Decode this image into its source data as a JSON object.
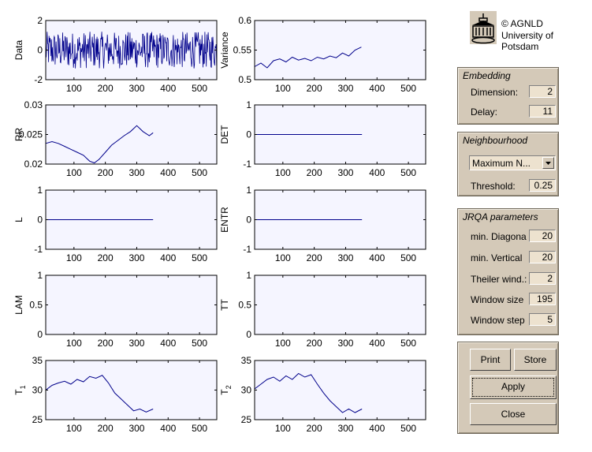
{
  "logo": {
    "icon": "university-building-icon",
    "lines": [
      "© AGNLD",
      "University of",
      "Potsdam"
    ]
  },
  "embedding": {
    "title": "Embedding",
    "dimension_label": "Dimension:",
    "dimension_value": "2",
    "delay_label": "Delay:",
    "delay_value": "11"
  },
  "neighbourhood": {
    "title": "Neighbourhood",
    "method_selected": "Maximum N...",
    "threshold_label": "Threshold:",
    "threshold_value": "0.25"
  },
  "jrqa": {
    "title": "JRQA parameters",
    "min_diagonal_label": "min. Diagona",
    "min_diagonal_value": "20",
    "min_vertical_label": "min. Vertical",
    "min_vertical_value": "20",
    "theiler_label": "Theiler wind.:",
    "theiler_value": "2",
    "window_size_label": "Window size",
    "window_size_value": "195",
    "window_step_label": "Window step",
    "window_step_value": "5"
  },
  "buttons": {
    "print": "Print",
    "store": "Store",
    "apply": "Apply",
    "close": "Close"
  },
  "colors": {
    "panel": "#d4c9b8",
    "plot_bg": "#f5f5ff",
    "trace": "#00008b"
  },
  "chart_data": [
    {
      "type": "line",
      "name": "data",
      "ylabel": "Data",
      "xlim": [
        10,
        555
      ],
      "ylim": [
        -2,
        2
      ],
      "xticks": [
        100,
        200,
        300,
        400,
        500
      ],
      "yticks": [
        -2,
        0,
        2
      ],
      "noise": true,
      "x_end": 555
    },
    {
      "type": "line",
      "name": "variance",
      "ylabel": "Variance",
      "xlim": [
        10,
        555
      ],
      "ylim": [
        0.5,
        0.6
      ],
      "xticks": [
        100,
        200,
        300,
        400,
        500
      ],
      "yticks": [
        0.5,
        0.55,
        0.6
      ],
      "x": [
        10,
        30,
        50,
        70,
        90,
        110,
        130,
        150,
        170,
        190,
        210,
        230,
        250,
        270,
        290,
        310,
        330,
        350
      ],
      "y": [
        0.522,
        0.528,
        0.52,
        0.532,
        0.535,
        0.53,
        0.538,
        0.533,
        0.536,
        0.532,
        0.538,
        0.535,
        0.54,
        0.537,
        0.545,
        0.54,
        0.55,
        0.555
      ]
    },
    {
      "type": "line",
      "name": "rr",
      "ylabel": "RR",
      "xlim": [
        10,
        555
      ],
      "ylim": [
        0.02,
        0.03
      ],
      "xticks": [
        100,
        200,
        300,
        400,
        500
      ],
      "yticks": [
        0.02,
        0.025,
        0.03
      ],
      "x": [
        10,
        30,
        50,
        70,
        90,
        110,
        130,
        150,
        165,
        180,
        200,
        220,
        240,
        260,
        280,
        300,
        320,
        340,
        352
      ],
      "y": [
        0.0235,
        0.0238,
        0.0235,
        0.023,
        0.0225,
        0.022,
        0.0215,
        0.0205,
        0.0202,
        0.0208,
        0.022,
        0.0232,
        0.024,
        0.0248,
        0.0255,
        0.0265,
        0.0255,
        0.0248,
        0.0253
      ]
    },
    {
      "type": "line",
      "name": "det",
      "ylabel": "DET",
      "xlim": [
        10,
        555
      ],
      "ylim": [
        -1,
        1
      ],
      "xticks": [
        100,
        200,
        300,
        400,
        500
      ],
      "yticks": [
        -1,
        0,
        1
      ],
      "x": [
        10,
        352
      ],
      "y": [
        0,
        0
      ]
    },
    {
      "type": "line",
      "name": "l",
      "ylabel": "L",
      "xlim": [
        10,
        555
      ],
      "ylim": [
        -1,
        1
      ],
      "xticks": [
        100,
        200,
        300,
        400,
        500
      ],
      "yticks": [
        -1,
        0,
        1
      ],
      "x": [
        10,
        352
      ],
      "y": [
        0,
        0
      ]
    },
    {
      "type": "line",
      "name": "entr",
      "ylabel": "ENTR",
      "xlim": [
        10,
        555
      ],
      "ylim": [
        -1,
        1
      ],
      "xticks": [
        100,
        200,
        300,
        400,
        500
      ],
      "yticks": [
        -1,
        0,
        1
      ],
      "x": [
        10,
        352
      ],
      "y": [
        0,
        0
      ]
    },
    {
      "type": "line",
      "name": "lam",
      "ylabel": "LAM",
      "xlim": [
        10,
        555
      ],
      "ylim": [
        0,
        1
      ],
      "xticks": [
        100,
        200,
        300,
        400,
        500
      ],
      "yticks": [
        0,
        0.5,
        1
      ],
      "x": [],
      "y": []
    },
    {
      "type": "line",
      "name": "tt",
      "ylabel": "TT",
      "xlim": [
        10,
        555
      ],
      "ylim": [
        0,
        1
      ],
      "xticks": [
        100,
        200,
        300,
        400,
        500
      ],
      "yticks": [
        0,
        0.5,
        1
      ],
      "x": [],
      "y": []
    },
    {
      "type": "line",
      "name": "t1",
      "ylabel": "T",
      "ylabel_sub": "1",
      "xlim": [
        10,
        555
      ],
      "ylim": [
        25,
        35
      ],
      "xticks": [
        100,
        200,
        300,
        400,
        500
      ],
      "yticks": [
        25,
        30,
        35
      ],
      "x": [
        10,
        30,
        50,
        70,
        90,
        110,
        130,
        150,
        170,
        190,
        210,
        230,
        250,
        270,
        290,
        310,
        330,
        352
      ],
      "y": [
        30,
        30.8,
        31.2,
        31.5,
        31,
        31.8,
        31.4,
        32.3,
        32,
        32.5,
        31.2,
        29.5,
        28.5,
        27.5,
        26.5,
        26.8,
        26.3,
        26.8
      ]
    },
    {
      "type": "line",
      "name": "t2",
      "ylabel": "T",
      "ylabel_sub": "2",
      "xlim": [
        10,
        555
      ],
      "ylim": [
        25,
        35
      ],
      "xticks": [
        100,
        200,
        300,
        400,
        500
      ],
      "yticks": [
        25,
        30,
        35
      ],
      "x": [
        10,
        30,
        50,
        70,
        90,
        110,
        130,
        150,
        170,
        190,
        210,
        230,
        250,
        270,
        290,
        310,
        330,
        352
      ],
      "y": [
        30.2,
        31,
        31.8,
        32.2,
        31.5,
        32.4,
        31.8,
        32.8,
        32.2,
        32.6,
        31,
        29.5,
        28.2,
        27.2,
        26.2,
        26.8,
        26.2,
        26.8
      ]
    }
  ]
}
